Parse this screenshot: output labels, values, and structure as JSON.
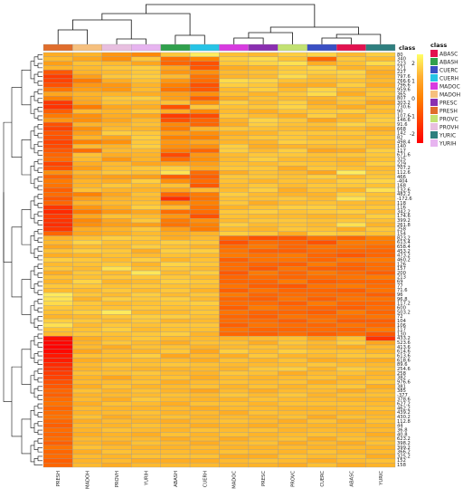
{
  "chart_data": {
    "type": "heatmap",
    "title": "",
    "xlabel": "",
    "ylabel": "",
    "columns": [
      "PRESH",
      "MADOH",
      "PROVH",
      "YURIH",
      "ABASH",
      "CUERH",
      "MADOC",
      "PRESC",
      "PROVC",
      "CUERC",
      "ABASC",
      "YURIC"
    ],
    "column_classes": [
      "PRESH",
      "MADOH",
      "PROVH",
      "YURIH",
      "ABASH",
      "CUERH",
      "MADOC",
      "PRESC",
      "PROVC",
      "CUERC",
      "ABASC",
      "YURIC"
    ],
    "class_annotation_title": "class",
    "class_legend_title": "class",
    "class_legend": [
      {
        "name": "ABASC",
        "color": "#e2114f"
      },
      {
        "name": "ABASH",
        "color": "#30a04c"
      },
      {
        "name": "CUERC",
        "color": "#3a4fc3"
      },
      {
        "name": "CUERH",
        "color": "#27c4e6"
      },
      {
        "name": "MADOC",
        "color": "#d83be0"
      },
      {
        "name": "MADOH",
        "color": "#f6c07e"
      },
      {
        "name": "PRESC",
        "color": "#8a2fb0"
      },
      {
        "name": "PRESH",
        "color": "#e06d2c"
      },
      {
        "name": "PROVC",
        "color": "#c2e272"
      },
      {
        "name": "PROVH",
        "color": "#e8bfe0"
      },
      {
        "name": "YURIC",
        "color": "#2f7f7f"
      },
      {
        "name": "YURIH",
        "color": "#e7b4f0"
      }
    ],
    "color_scale": {
      "ticks": [
        2,
        1,
        0,
        -1,
        -2
      ],
      "colors": [
        "#ffff66",
        "#ffb033",
        "#ff8000",
        "#ff4000",
        "#ff0000"
      ],
      "range": [
        -2.5,
        2.5
      ]
    },
    "row_labels": [
      "80",
      "340",
      "223",
      "271",
      "227",
      "797.6",
      "766.6",
      "796.6",
      "959.6",
      "365",
      "807",
      "303.2",
      "730.6",
      "90",
      "107.6",
      "146.6",
      "91.6",
      "668",
      "142",
      "82",
      "498.4",
      "140",
      "117",
      "671.6",
      "325",
      "229",
      "707.2",
      "112.6",
      "466",
      "-404",
      "168",
      "132.6",
      "482.2",
      "-172.6",
      "118",
      "116",
      "342.2",
      "174.6",
      "399.2",
      "261.8",
      "258",
      "154",
      "823.2",
      "613.4",
      "658.4",
      "453.2",
      "473.2",
      "460.2",
      "126",
      "157",
      "200",
      "213",
      "69",
      "77",
      "71.6",
      "96",
      "96.8",
      "117.2",
      "600",
      "503.2",
      "72",
      "104",
      "106",
      "117",
      "130",
      "433.2",
      "523.6",
      "413.6",
      "614.6",
      "613.6",
      "618.6",
      "89.6",
      "254.6",
      "258",
      "382",
      "976.6",
      "381",
      "385",
      "-377",
      "378.6",
      "627.2",
      "462.2",
      "439.2",
      "430.2",
      "112.8",
      "44",
      "36.8",
      "40.8",
      "623.2",
      "398.2",
      "399.2",
      "366.2",
      "325.2",
      "152",
      "158"
    ],
    "values": [
      [
        0.4,
        0.5,
        0.1,
        -0.1,
        0.8,
        1.7,
        0.7,
        0.6,
        0.9,
        1.0,
        0.6,
        0.9
      ],
      [
        0.6,
        0.3,
        0.0,
        0.8,
        -0.5,
        -0.2,
        0.9,
        1.1,
        0.7,
        -0.6,
        0.8,
        0.6
      ],
      [
        0.2,
        0.7,
        0.6,
        0.3,
        -0.6,
        -0.9,
        0.8,
        1.0,
        1.2,
        0.4,
        0.7,
        1.1
      ],
      [
        0.5,
        0.6,
        0.8,
        0.9,
        0.3,
        -0.8,
        0.4,
        0.5,
        0.8,
        1.0,
        0.5,
        0.6
      ],
      [
        -0.8,
        0.5,
        0.6,
        0.8,
        0.1,
        0.0,
        0.6,
        0.7,
        0.9,
        0.9,
        1.0,
        0.4
      ],
      [
        -1.2,
        0.2,
        0.8,
        0.9,
        0.6,
        -0.4,
        0.5,
        0.6,
        1.1,
        0.7,
        0.9,
        0.5
      ],
      [
        -1.1,
        -0.3,
        0.4,
        0.7,
        0.1,
        -0.5,
        1.1,
        1.0,
        0.7,
        0.6,
        0.7,
        0.6
      ],
      [
        -0.9,
        0.1,
        0.1,
        0.5,
        -0.2,
        -0.9,
        0.9,
        0.8,
        0.4,
        0.4,
        0.9,
        0.4
      ],
      [
        -0.4,
        0.2,
        0.1,
        0.6,
        -0.4,
        -0.8,
        0.6,
        0.9,
        0.6,
        1.0,
        0.6,
        0.7
      ],
      [
        0.3,
        0.5,
        0.5,
        0.4,
        0.2,
        0.0,
        0.7,
        0.5,
        0.8,
        1.1,
        0.4,
        0.8
      ],
      [
        -0.2,
        0.4,
        0.8,
        0.9,
        0.2,
        -0.7,
        0.4,
        0.7,
        0.6,
        0.5,
        0.8,
        0.6
      ],
      [
        -1.3,
        0.3,
        0.7,
        0.6,
        0.7,
        0.0,
        0.9,
        0.6,
        0.9,
        0.4,
        0.7,
        0.3
      ],
      [
        -1.4,
        -0.3,
        0.3,
        0.4,
        -0.9,
        0.8,
        0.7,
        0.8,
        1.0,
        0.6,
        0.4,
        0.7
      ],
      [
        -0.7,
        0.6,
        0.5,
        0.8,
        0.4,
        -0.1,
        0.6,
        0.4,
        0.7,
        0.8,
        0.9,
        0.6
      ],
      [
        -0.3,
        0.0,
        0.4,
        0.3,
        -1.2,
        -1.0,
        0.8,
        0.6,
        0.4,
        0.9,
        0.5,
        0.8
      ],
      [
        0.1,
        0.0,
        0.3,
        0.6,
        -0.9,
        -0.6,
        0.5,
        1.0,
        0.8,
        0.3,
        0.6,
        0.9
      ],
      [
        -0.9,
        0.5,
        0.5,
        0.7,
        -0.1,
        -0.6,
        0.4,
        0.9,
        0.7,
        0.7,
        1.0,
        0.8
      ],
      [
        -1.1,
        0.0,
        0.6,
        0.5,
        -0.3,
        0.5,
        0.8,
        0.7,
        0.6,
        0.5,
        0.6,
        0.4
      ],
      [
        -0.8,
        0.2,
        0.9,
        0.8,
        0.2,
        0.0,
        0.4,
        0.5,
        0.8,
        0.8,
        0.8,
        0.6
      ],
      [
        -0.9,
        0.5,
        0.3,
        0.9,
        -0.2,
        -0.2,
        0.6,
        0.8,
        0.8,
        0.6,
        0.6,
        0.8
      ],
      [
        -1.1,
        -0.2,
        0.0,
        0.8,
        0.1,
        0.3,
        0.5,
        0.5,
        0.9,
        0.8,
        0.8,
        0.6
      ],
      [
        -1.0,
        0.6,
        0.5,
        0.9,
        0.0,
        0.0,
        0.9,
        0.4,
        0.5,
        0.6,
        0.7,
        0.6
      ],
      [
        -0.8,
        -0.5,
        0.6,
        0.6,
        -0.3,
        -0.6,
        0.9,
        0.6,
        0.9,
        0.3,
        0.4,
        0.9
      ],
      [
        -0.6,
        0.7,
        0.4,
        0.5,
        -1.0,
        0.1,
        0.6,
        0.8,
        0.8,
        0.7,
        0.8,
        0.8
      ],
      [
        -0.5,
        0.6,
        0.1,
        0.5,
        -0.5,
        0.0,
        0.6,
        0.9,
        0.6,
        0.6,
        0.5,
        0.7
      ],
      [
        -1.1,
        0.4,
        0.6,
        0.3,
        0.3,
        0.2,
        0.7,
        0.6,
        0.8,
        0.7,
        0.6,
        0.9
      ],
      [
        -0.9,
        0.2,
        0.6,
        0.8,
        0.9,
        0.4,
        0.8,
        0.8,
        0.4,
        0.8,
        0.7,
        0.6
      ],
      [
        0.0,
        0.6,
        0.8,
        0.7,
        1.3,
        -0.5,
        0.4,
        0.7,
        0.6,
        0.3,
        1.7,
        0.7
      ],
      [
        -0.6,
        0.3,
        0.2,
        0.2,
        -0.7,
        -0.7,
        0.8,
        0.8,
        0.7,
        0.9,
        0.6,
        0.8
      ],
      [
        -0.3,
        0.5,
        0.4,
        0.9,
        0.0,
        -0.5,
        0.7,
        0.5,
        0.7,
        0.6,
        0.9,
        1.0
      ],
      [
        -0.4,
        0.5,
        0.8,
        0.6,
        0.7,
        -0.8,
        0.6,
        0.8,
        0.6,
        0.8,
        0.8,
        0.7
      ],
      [
        -0.7,
        0.7,
        0.5,
        0.5,
        0.3,
        0.6,
        0.6,
        0.9,
        0.4,
        0.7,
        0.5,
        1.2
      ],
      [
        -0.5,
        -0.2,
        0.3,
        0.7,
        -0.6,
        -0.3,
        0.9,
        0.6,
        0.5,
        0.5,
        0.9,
        0.7
      ],
      [
        -0.8,
        0.2,
        0.5,
        0.6,
        -1.5,
        -0.4,
        0.7,
        0.7,
        0.8,
        0.6,
        1.3,
        0.8
      ],
      [
        -0.6,
        0.5,
        0.6,
        0.7,
        0.0,
        -0.2,
        0.8,
        0.4,
        0.6,
        0.7,
        0.6,
        0.6
      ],
      [
        -1.3,
        0.1,
        0.4,
        0.9,
        0.6,
        -0.4,
        0.5,
        0.7,
        0.9,
        0.9,
        0.7,
        0.8
      ],
      [
        -1.6,
        -0.3,
        0.1,
        0.3,
        -0.5,
        -0.5,
        0.8,
        0.9,
        0.7,
        0.8,
        0.9,
        0.6
      ],
      [
        -1.2,
        0.3,
        0.7,
        0.6,
        0.1,
        -0.9,
        0.7,
        0.6,
        0.6,
        0.5,
        0.6,
        0.9
      ],
      [
        -1.4,
        -0.1,
        0.3,
        0.8,
        -0.3,
        0.0,
        0.6,
        0.8,
        0.8,
        0.7,
        0.8,
        0.7
      ],
      [
        -1.5,
        0.0,
        0.2,
        0.2,
        -0.4,
        -0.2,
        0.9,
        0.6,
        0.7,
        0.6,
        1.2,
        0.5
      ],
      [
        -1.3,
        0.4,
        0.5,
        0.8,
        0.2,
        -0.3,
        0.6,
        0.5,
        0.8,
        0.7,
        0.4,
        0.8
      ],
      [
        -0.6,
        0.3,
        0.4,
        0.6,
        0.4,
        0.5,
        0.9,
        0.8,
        0.4,
        0.9,
        0.8,
        0.7
      ],
      [
        0.5,
        0.7,
        0.9,
        0.8,
        0.4,
        0.6,
        -0.5,
        -0.9,
        -0.8,
        -0.4,
        -0.6,
        -0.2
      ],
      [
        0.6,
        1.0,
        0.7,
        0.7,
        0.9,
        0.8,
        -0.9,
        -0.5,
        -0.6,
        -0.9,
        -0.3,
        -0.3
      ],
      [
        0.3,
        0.6,
        0.6,
        0.9,
        0.7,
        0.5,
        -0.5,
        -0.3,
        -0.6,
        -0.4,
        -0.4,
        -0.5
      ],
      [
        0.7,
        0.9,
        0.8,
        0.4,
        0.9,
        0.9,
        -0.4,
        -0.7,
        -0.7,
        -0.5,
        -0.6,
        -0.6
      ],
      [
        0.4,
        0.5,
        0.7,
        0.6,
        0.7,
        0.6,
        -0.3,
        -0.4,
        -0.3,
        -0.6,
        -0.8,
        -0.6
      ],
      [
        0.9,
        0.8,
        0.6,
        0.9,
        0.5,
        0.7,
        -0.7,
        -0.4,
        -0.4,
        -0.6,
        -0.3,
        -0.3
      ],
      [
        0.6,
        0.7,
        0.8,
        0.5,
        1.0,
        0.8,
        -0.5,
        -0.6,
        -0.7,
        -0.3,
        -0.6,
        -0.5
      ],
      [
        0.8,
        0.6,
        1.2,
        0.7,
        0.8,
        0.6,
        -0.5,
        -0.8,
        -0.4,
        -0.7,
        -0.7,
        -0.5
      ],
      [
        0.4,
        0.8,
        0.6,
        1.5,
        0.6,
        0.9,
        -0.8,
        -0.3,
        -0.6,
        -0.3,
        -0.5,
        -0.7
      ],
      [
        0.7,
        0.7,
        0.8,
        0.8,
        0.8,
        0.6,
        -0.6,
        -0.5,
        -0.6,
        -0.5,
        -0.4,
        -0.3
      ],
      [
        0.5,
        1.0,
        0.5,
        0.6,
        0.9,
        0.8,
        -0.6,
        -0.6,
        -0.3,
        -0.7,
        -0.6,
        -0.6
      ],
      [
        0.8,
        0.8,
        0.7,
        0.8,
        0.7,
        0.7,
        -0.4,
        -0.7,
        -0.8,
        -0.4,
        -0.3,
        -0.5
      ],
      [
        0.6,
        0.6,
        0.8,
        0.6,
        0.8,
        0.5,
        -0.7,
        -0.4,
        -0.6,
        -0.6,
        -0.7,
        -0.4
      ],
      [
        1.6,
        0.8,
        0.6,
        0.9,
        0.6,
        0.8,
        -0.3,
        -0.6,
        -0.5,
        -0.5,
        -0.5,
        -0.7
      ],
      [
        1.3,
        0.5,
        0.9,
        0.8,
        0.9,
        0.6,
        -0.6,
        -0.7,
        -0.4,
        -0.7,
        -0.4,
        -0.4
      ],
      [
        1.1,
        0.8,
        0.6,
        0.7,
        0.8,
        0.9,
        -0.5,
        -0.5,
        -0.7,
        -0.3,
        -0.6,
        -0.6
      ],
      [
        0.8,
        0.7,
        0.7,
        0.8,
        0.7,
        0.7,
        -0.7,
        -0.3,
        -0.5,
        -0.6,
        -0.7,
        -0.5
      ],
      [
        0.7,
        0.9,
        1.6,
        0.6,
        0.6,
        0.8,
        -0.4,
        -0.6,
        -0.6,
        -0.7,
        -0.3,
        -0.6
      ],
      [
        0.5,
        0.6,
        0.8,
        0.9,
        0.9,
        0.7,
        -0.6,
        -0.7,
        -0.4,
        -0.5,
        -0.5,
        -0.4
      ],
      [
        0.9,
        0.8,
        0.6,
        0.8,
        0.5,
        0.6,
        -0.5,
        -0.5,
        -0.7,
        -0.4,
        -0.7,
        -0.7
      ],
      [
        1.2,
        0.6,
        0.8,
        0.7,
        0.8,
        0.8,
        -0.7,
        -0.4,
        -0.5,
        -0.6,
        -0.4,
        -0.6
      ],
      [
        0.7,
        0.7,
        0.9,
        0.6,
        0.7,
        0.7,
        -0.4,
        -0.6,
        -0.6,
        -0.5,
        -0.6,
        -0.3
      ],
      [
        0.6,
        0.8,
        0.7,
        0.8,
        0.9,
        0.5,
        -0.6,
        -0.7,
        -0.5,
        -0.7,
        -0.5,
        -0.8
      ],
      [
        -2.2,
        0.4,
        0.6,
        0.8,
        0.6,
        0.6,
        0.5,
        0.6,
        0.7,
        0.3,
        0.7,
        -1.4
      ],
      [
        -2.4,
        0.5,
        0.8,
        0.6,
        0.4,
        0.7,
        0.7,
        0.4,
        0.8,
        0.6,
        0.9,
        0.3
      ],
      [
        -2.5,
        0.6,
        0.4,
        0.7,
        0.7,
        0.5,
        0.6,
        0.7,
        0.6,
        0.5,
        0.4,
        0.6
      ],
      [
        -2.3,
        0.3,
        0.6,
        0.5,
        0.8,
        0.3,
        0.9,
        0.6,
        0.9,
        0.7,
        0.7,
        0.5
      ],
      [
        -2.0,
        0.7,
        0.7,
        0.9,
        0.3,
        0.6,
        0.4,
        0.8,
        0.5,
        0.6,
        0.8,
        0.8
      ],
      [
        -1.9,
        0.4,
        0.5,
        0.6,
        0.6,
        0.4,
        0.7,
        0.5,
        0.7,
        0.4,
        0.5,
        0.4
      ],
      [
        -1.6,
        0.6,
        0.8,
        0.7,
        0.8,
        0.7,
        0.6,
        0.6,
        0.6,
        0.8,
        0.6,
        0.6
      ],
      [
        -1.4,
        0.5,
        0.6,
        0.5,
        0.5,
        0.6,
        0.5,
        0.8,
        0.9,
        0.5,
        0.9,
        0.7
      ],
      [
        -1.2,
        0.7,
        0.7,
        0.8,
        0.6,
        0.5,
        0.8,
        0.7,
        0.4,
        0.6,
        0.7,
        0.5
      ],
      [
        -1.1,
        0.5,
        0.3,
        0.6,
        0.7,
        0.4,
        0.6,
        0.5,
        0.6,
        0.7,
        0.5,
        0.6
      ],
      [
        -0.9,
        0.6,
        0.6,
        0.7,
        0.4,
        0.6,
        0.7,
        0.6,
        0.7,
        0.4,
        0.6,
        0.8
      ],
      [
        -0.8,
        0.4,
        0.7,
        0.5,
        0.6,
        0.7,
        0.5,
        0.7,
        0.5,
        0.7,
        0.8,
        0.4
      ],
      [
        -0.6,
        0.7,
        0.5,
        0.7,
        0.5,
        0.3,
        0.6,
        0.4,
        0.6,
        0.6,
        0.4,
        0.6
      ],
      [
        -0.7,
        0.5,
        0.6,
        0.6,
        0.7,
        0.6,
        0.8,
        0.6,
        0.8,
        0.5,
        0.7,
        0.7
      ],
      [
        -0.5,
        0.6,
        0.4,
        0.8,
        0.6,
        0.5,
        0.5,
        0.7,
        0.6,
        0.6,
        0.5,
        0.5
      ],
      [
        -0.4,
        0.4,
        0.7,
        0.6,
        0.4,
        0.7,
        0.7,
        0.5,
        0.7,
        0.7,
        0.7,
        0.6
      ],
      [
        -0.6,
        0.6,
        0.5,
        0.5,
        0.6,
        0.4,
        0.6,
        0.6,
        0.5,
        0.5,
        0.6,
        0.7
      ],
      [
        -0.5,
        0.5,
        0.6,
        0.7,
        0.5,
        0.6,
        0.4,
        0.7,
        0.6,
        0.6,
        0.5,
        0.5
      ],
      [
        -0.4,
        0.7,
        0.4,
        0.6,
        0.7,
        0.5,
        0.6,
        0.5,
        0.7,
        0.4,
        0.7,
        0.6
      ],
      [
        -0.6,
        0.4,
        0.6,
        0.5,
        0.4,
        0.6,
        0.7,
        0.6,
        0.4,
        0.7,
        0.4,
        0.7
      ],
      [
        -0.7,
        0.6,
        0.5,
        0.7,
        0.6,
        0.4,
        0.5,
        0.4,
        0.6,
        0.5,
        0.6,
        0.5
      ],
      [
        -0.5,
        0.5,
        0.7,
        0.6,
        0.5,
        0.7,
        0.6,
        0.7,
        0.5,
        0.6,
        0.5,
        0.6
      ],
      [
        -0.6,
        0.4,
        0.5,
        0.4,
        0.7,
        0.5,
        0.7,
        0.5,
        0.6,
        0.7,
        0.6,
        0.4
      ],
      [
        -0.5,
        0.6,
        0.6,
        0.6,
        0.4,
        0.6,
        0.4,
        0.6,
        0.7,
        0.4,
        0.7,
        0.6
      ],
      [
        -0.7,
        0.5,
        0.4,
        0.7,
        0.6,
        0.4,
        0.6,
        0.7,
        0.4,
        0.6,
        0.4,
        0.7
      ],
      [
        -0.4,
        0.7,
        0.6,
        0.5,
        0.5,
        0.6,
        0.5,
        0.5,
        0.6,
        0.5,
        0.6,
        0.5
      ],
      [
        -0.6,
        0.4,
        0.7,
        0.6,
        0.6,
        0.5,
        0.7,
        0.6,
        0.5,
        0.7,
        0.5,
        0.6
      ],
      [
        -0.5,
        0.6,
        0.5,
        0.7,
        0.7,
        0.7,
        0.4,
        0.4,
        0.7,
        0.6,
        0.7,
        0.4
      ],
      [
        -0.7,
        0.5,
        0.6,
        0.4,
        0.4,
        0.4,
        0.6,
        0.7,
        0.6,
        0.4,
        0.6,
        0.7
      ],
      [
        -0.6,
        0.6,
        0.4,
        0.6,
        0.6,
        0.6,
        0.5,
        0.5,
        0.4,
        0.7,
        0.4,
        0.5
      ]
    ]
  }
}
